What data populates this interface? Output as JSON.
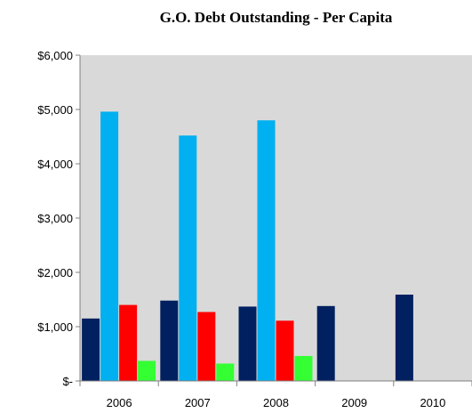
{
  "chart_data": {
    "type": "bar",
    "title": "G.O. Debt Outstanding - Per Capita",
    "categories": [
      "2006",
      "2007",
      "2008",
      "2009",
      "2010"
    ],
    "ylim": [
      0,
      6000
    ],
    "y_ticks": [
      0,
      1000,
      2000,
      3000,
      4000,
      5000,
      6000
    ],
    "y_tick_labels": [
      "$-",
      "$1,000",
      "$2,000",
      "$3,000",
      "$4,000",
      "$5,000",
      "$6,000"
    ],
    "grid": false,
    "legend": "none",
    "series": [
      {
        "color": "#002060",
        "values": [
          1150,
          1480,
          1370,
          1380,
          1590
        ]
      },
      {
        "color": "#00B0F0",
        "values": [
          4960,
          4520,
          4800,
          null,
          null
        ]
      },
      {
        "color": "#FF0000",
        "values": [
          1400,
          1270,
          1110,
          null,
          null
        ]
      },
      {
        "color": "#33FF33",
        "values": [
          370,
          320,
          460,
          null,
          null
        ]
      }
    ]
  }
}
